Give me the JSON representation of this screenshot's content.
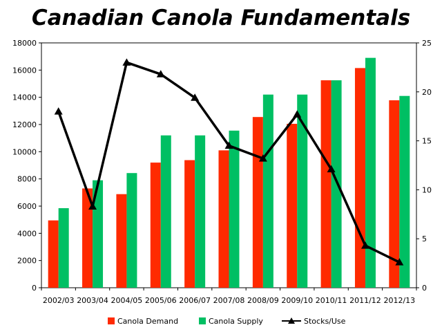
{
  "chart_data": {
    "type": "bar",
    "title": "Canadian Canola Fundamentals",
    "categories": [
      "2002/03",
      "2003/04",
      "2004/05",
      "2005/06",
      "2006/07",
      "2007/08",
      "2008/09",
      "2009/10",
      "2010/11",
      "2011/12",
      "2012/13"
    ],
    "series": [
      {
        "name": "Canola Demand",
        "type": "bar",
        "axis": "left",
        "color": "#ff2a00",
        "values": [
          4950,
          7300,
          6880,
          9200,
          9380,
          10100,
          12550,
          12050,
          15250,
          16150,
          13780
        ]
      },
      {
        "name": "Canola Supply",
        "type": "bar",
        "axis": "left",
        "color": "#00bf63",
        "values": [
          5850,
          7900,
          8430,
          11200,
          11200,
          11550,
          14200,
          14200,
          15250,
          16900,
          14100
        ]
      },
      {
        "name": "Stocks/Use",
        "type": "line",
        "axis": "right",
        "color": "#000000",
        "values": [
          18.0,
          8.3,
          23.0,
          21.8,
          19.4,
          14.5,
          13.2,
          17.7,
          12.1,
          4.3,
          2.6
        ]
      }
    ],
    "y_left": {
      "min": 0,
      "max": 18000,
      "ticks": [
        0,
        2000,
        4000,
        6000,
        8000,
        10000,
        12000,
        14000,
        16000,
        18000
      ]
    },
    "y_right": {
      "min": 0,
      "max": 25,
      "ticks": [
        0,
        5,
        10,
        15,
        20,
        25
      ]
    },
    "legend_position": "bottom",
    "grid": false
  }
}
